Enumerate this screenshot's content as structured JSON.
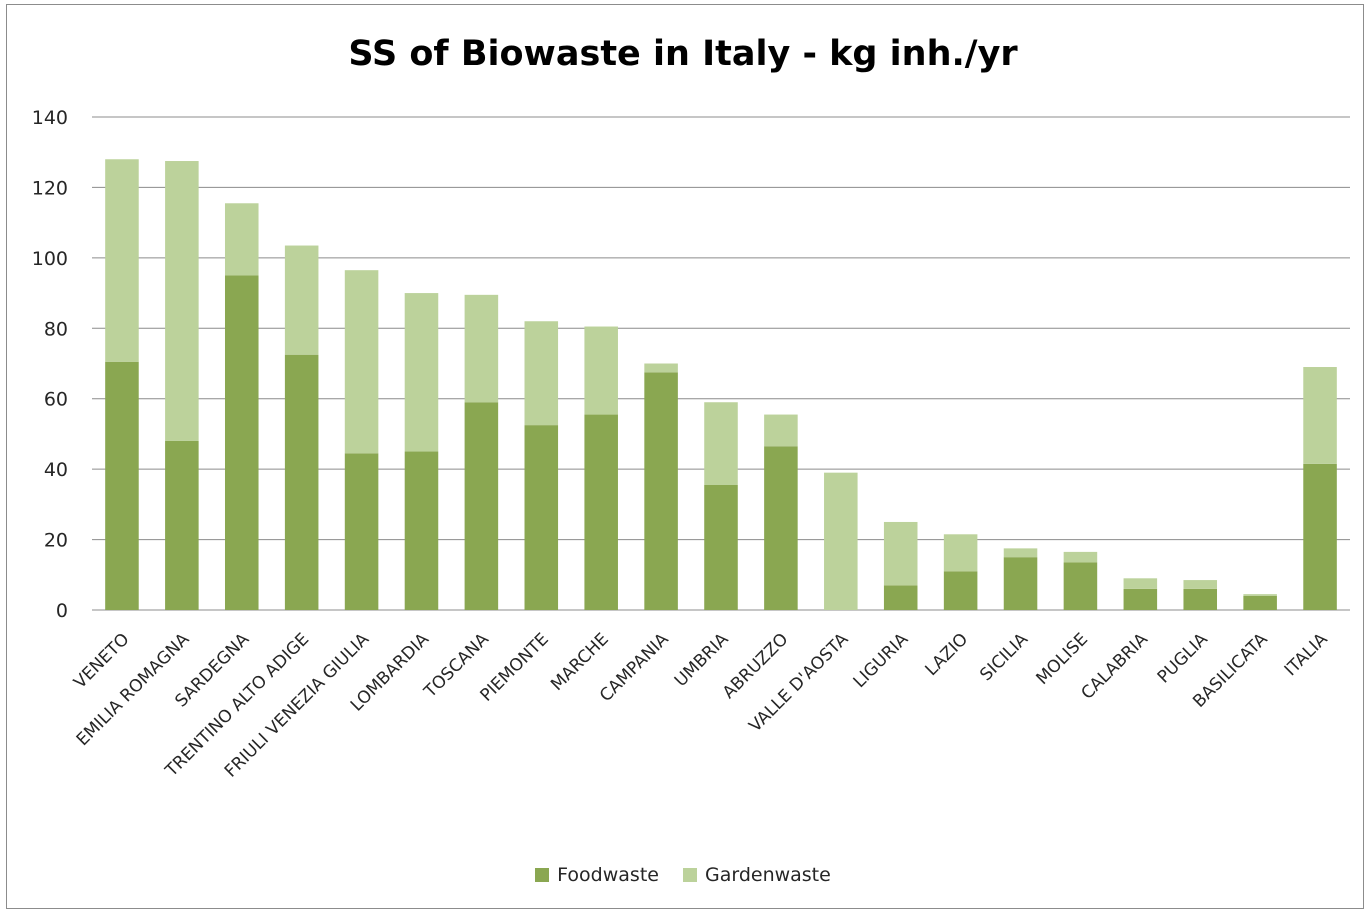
{
  "chart_data": {
    "type": "bar",
    "stacked": true,
    "title": "SS of Biowaste in Italy - kg inh./yr",
    "xlabel": "",
    "ylabel": "",
    "ylim": [
      0,
      140
    ],
    "yticks": [
      0,
      20,
      40,
      60,
      80,
      100,
      120,
      140
    ],
    "grid": true,
    "legend_position": "bottom",
    "categories": [
      "VENETO",
      "EMILIA ROMAGNA",
      "SARDEGNA",
      "TRENTINO ALTO ADIGE",
      "FRIULI VENEZIA GIULIA",
      "LOMBARDIA",
      "TOSCANA",
      "PIEMONTE",
      "MARCHE",
      "CAMPANIA",
      "UMBRIA",
      "ABRUZZO",
      "VALLE D'AOSTA",
      "LIGURIA",
      "LAZIO",
      "SICILIA",
      "MOLISE",
      "CALABRIA",
      "PUGLIA",
      "BASILICATA",
      "ITALIA"
    ],
    "series": [
      {
        "name": "Foodwaste",
        "color": "#8aa751",
        "values": [
          70.5,
          48,
          95,
          72.5,
          44.5,
          45,
          59,
          52.5,
          55.5,
          67.5,
          35.5,
          46.5,
          0,
          7,
          11,
          15,
          13.5,
          6,
          6,
          4,
          41.5
        ]
      },
      {
        "name": "Gardenwaste",
        "color": "#bcd29b",
        "values": [
          57.5,
          79.5,
          20.5,
          31,
          52,
          45,
          30.5,
          29.5,
          25,
          2.5,
          23.5,
          9,
          39,
          18,
          10.5,
          2.5,
          3,
          3,
          2.5,
          0.5,
          27.5
        ]
      }
    ]
  }
}
